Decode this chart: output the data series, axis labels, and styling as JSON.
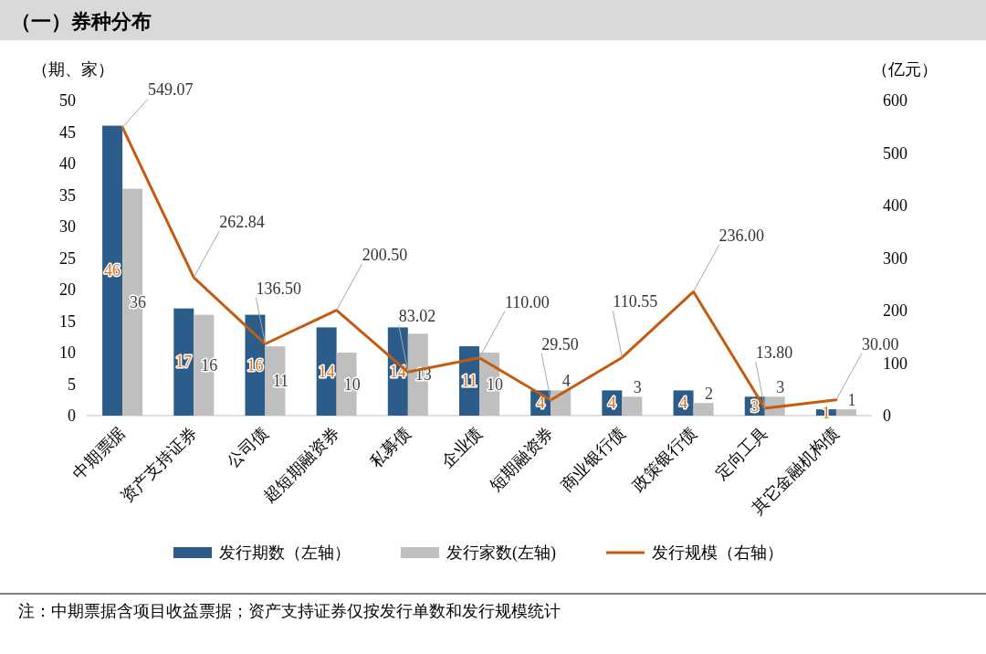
{
  "chart_data": {
    "type": "bar",
    "title": "（一）券种分布",
    "ylabel": "（期、家）",
    "y2label": "（亿元）",
    "categories": [
      "中期票据",
      "资产支持证券",
      "公司债",
      "超短期融资券",
      "私募债",
      "企业债",
      "短期融资券",
      "商业银行债",
      "政策银行债",
      "定向工具",
      "其它金融机构债"
    ],
    "series": [
      {
        "name": "发行期数（左轴）",
        "color": "#2b5c8a",
        "values": [
          46,
          17,
          16,
          14,
          14,
          11,
          4,
          4,
          4,
          3,
          1
        ]
      },
      {
        "name": "发行家数(左轴)",
        "color": "#bfbfbf",
        "values": [
          36,
          16,
          11,
          10,
          13,
          10,
          4,
          3,
          2,
          3,
          1
        ]
      },
      {
        "name": "发行规模（右轴）",
        "type": "line",
        "axis": "y2",
        "color": "#c55a11",
        "values": [
          549.07,
          262.84,
          136.5,
          200.5,
          83.02,
          110.0,
          29.5,
          110.55,
          236.0,
          13.8,
          30.0
        ],
        "value_labels": [
          "549.07",
          "262.84",
          "136.50",
          "200.50",
          "83.02",
          "110.00",
          "29.50",
          "110.55",
          "236.00",
          "13.80",
          "30.00"
        ]
      }
    ],
    "ylim": [
      0,
      50
    ],
    "yticks": [
      0,
      5,
      10,
      15,
      20,
      25,
      30,
      35,
      40,
      45,
      50
    ],
    "y2lim": [
      0,
      600
    ],
    "y2ticks": [
      0,
      100,
      200,
      300,
      400,
      500,
      600
    ],
    "data_labels": true,
    "legend": "bottom",
    "grid": false,
    "annotations": [
      "注：中期票据含项目收益票据；资产支持证券仅按发行单数和发行规模统计"
    ]
  }
}
